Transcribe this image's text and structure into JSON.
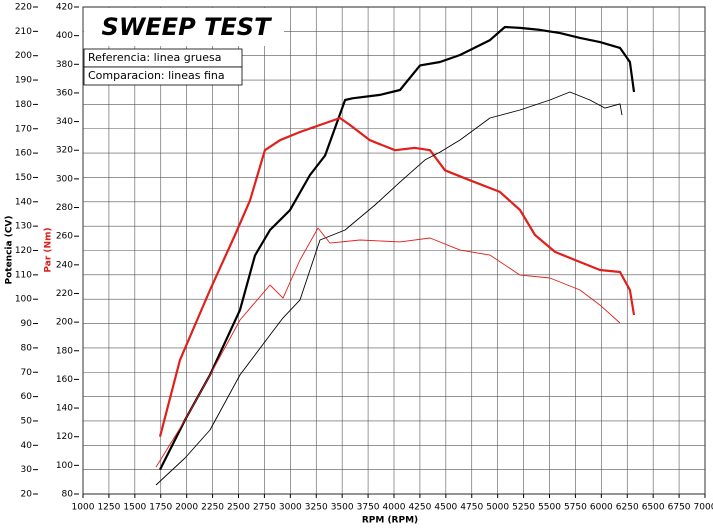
{
  "chart_data": {
    "type": "line",
    "title": "SWEEP TEST",
    "legend_notes": [
      "Referencia: linea gruesa",
      "Comparacion: lineas fina"
    ],
    "x_label": "RPM (RPM)",
    "y_label": "Potencia (CV)",
    "y2_label": "Par (Nm)",
    "xlim": [
      1000,
      7000
    ],
    "xticks": [
      1000,
      1250,
      1500,
      1750,
      2000,
      2250,
      2500,
      2750,
      3000,
      3250,
      3500,
      3750,
      4000,
      4250,
      4500,
      4750,
      5000,
      5250,
      5500,
      5750,
      6000,
      6250,
      6500,
      6750,
      7000
    ],
    "ylim": [
      20,
      220
    ],
    "yticks": [
      20,
      30,
      40,
      50,
      60,
      70,
      80,
      90,
      100,
      110,
      120,
      130,
      140,
      150,
      160,
      170,
      180,
      190,
      200,
      210,
      220
    ],
    "y2lim": [
      80,
      420
    ],
    "y2ticks": [
      80,
      100,
      120,
      140,
      160,
      180,
      200,
      220,
      240,
      260,
      280,
      300,
      320,
      340,
      360,
      380,
      400,
      420
    ],
    "grid": true,
    "series": [
      {
        "color": "#000000",
        "linewidth": 2.2,
        "axis": "y",
        "x": [
          1743,
          1984,
          2225,
          2514,
          2659,
          2804,
          2997,
          3190,
          3335,
          3528,
          3600,
          3865,
          4058,
          4251,
          4444,
          4637,
          4926,
          5070,
          5215,
          5408,
          5601,
          5794,
          5987,
          6180,
          6276,
          6315
        ],
        "values": [
          30,
          50.4,
          68.9,
          95.6,
          118,
          128.4,
          136.6,
          151,
          159,
          181.8,
          182.5,
          183.9,
          185.9,
          196,
          197.4,
          200.3,
          206.4,
          211.8,
          211.4,
          210.6,
          209.3,
          207.3,
          205.6,
          203.2,
          197.4,
          185.1
        ]
      },
      {
        "color": "#e0201c",
        "linewidth": 2.2,
        "axis": "y2",
        "x": [
          1743,
          1936,
          2225,
          2466,
          2611,
          2755,
          2900,
          3093,
          3286,
          3479,
          3576,
          3768,
          4010,
          4203,
          4347,
          4492,
          4733,
          5022,
          5215,
          5360,
          5553,
          5794,
          5987,
          6180,
          6276,
          6315
        ],
        "values": [
          120,
          173.6,
          222.4,
          260.8,
          285,
          320,
          327,
          332.7,
          337.6,
          342.5,
          337.6,
          327,
          320,
          321.6,
          320,
          306,
          299,
          290.9,
          278.3,
          260.8,
          249,
          242,
          236.4,
          235,
          222.4,
          205
        ]
      },
      {
        "color": "#000000",
        "linewidth": 0.9,
        "axis": "y",
        "x": [
          1704,
          1984,
          2225,
          2514,
          2804,
          2929,
          3093,
          3286,
          3528,
          3817,
          4058,
          4299,
          4444,
          4637,
          4926,
          5215,
          5504,
          5697,
          5890,
          6035,
          6180,
          6199
        ],
        "values": [
          23.7,
          34.8,
          46.3,
          68.9,
          85.3,
          92.3,
          99.7,
          124.3,
          128.4,
          138.7,
          148.1,
          157.2,
          160.4,
          165.4,
          174.4,
          177.7,
          181.8,
          185.1,
          181.8,
          178.5,
          180.2,
          175.6
        ]
      },
      {
        "color": "#e0201c",
        "linewidth": 0.9,
        "axis": "y2",
        "x": [
          1704,
          1984,
          2225,
          2514,
          2804,
          2929,
          3093,
          3267,
          3383,
          3672,
          4058,
          4347,
          4637,
          4926,
          5215,
          5504,
          5794,
          5987,
          6180
        ],
        "values": [
          98.8,
          131.6,
          163,
          201.5,
          225.9,
          216.8,
          243.4,
          265.7,
          255.2,
          257.3,
          256,
          258.7,
          250.3,
          246.8,
          232.8,
          230.8,
          222.4,
          211.9,
          199.4
        ]
      }
    ]
  }
}
